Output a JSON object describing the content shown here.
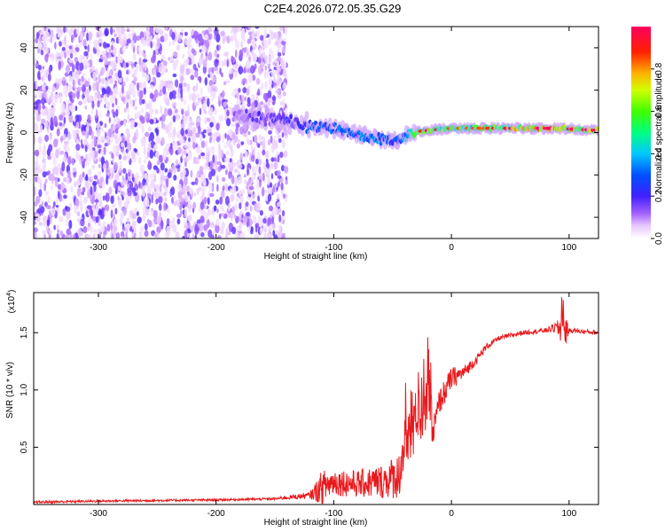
{
  "page_title": "C2E4.2026.072.05.35.G29",
  "colors": {
    "axis": "#000000",
    "snr_line": "#e8191c",
    "spectrogram_low": "#a070ff",
    "spectrogram_mid": "#00ff80",
    "spectrogram_high": "#ff0000"
  },
  "chart_data": [
    {
      "type": "heatmap",
      "name": "spectrogram",
      "title": "C2E4.2026.072.05.35.G29",
      "xlabel": "Height of straight line (km)",
      "ylabel": "Frequency (Hz)",
      "xlim": [
        -355,
        125
      ],
      "ylim": [
        -50,
        50
      ],
      "xticks": [
        -300,
        -200,
        -100,
        0,
        100
      ],
      "xtick_labels": [
        "-300",
        "-200",
        "-100",
        "0",
        "100"
      ],
      "yticks": [
        -40,
        -20,
        0,
        20,
        40
      ],
      "ytick_labels": [
        "-40",
        "-20",
        "0",
        "20",
        "40"
      ],
      "ridge_height_km": [
        -180,
        -150,
        -120,
        -100,
        -80,
        -60,
        -45,
        -35,
        -20,
        0,
        30,
        60,
        90,
        125
      ],
      "ridge_freq_hz": [
        8,
        6,
        3,
        2,
        -1,
        -3,
        -4,
        0,
        1,
        2,
        2,
        2,
        2,
        1
      ],
      "ridge_amplitude": [
        0.15,
        0.2,
        0.3,
        0.35,
        0.35,
        0.35,
        0.3,
        0.5,
        0.7,
        0.6,
        0.6,
        0.8,
        0.85,
        0.7
      ],
      "colorbar": {
        "label": "Normalized spectral amplitude",
        "range": [
          0,
          1
        ],
        "ticks": [
          0.0,
          0.2,
          0.4,
          0.6,
          0.8
        ],
        "tick_labels": [
          "0.0",
          "0.2",
          "0.4",
          "0.6",
          "0.8"
        ]
      }
    },
    {
      "type": "line",
      "name": "snr",
      "xlabel": "Height of straight line (km)",
      "ylabel": "SNR (10 * v/v)",
      "y_multiplier_label": "(x10",
      "y_multiplier_exp": "4",
      "y_multiplier_close": ")",
      "xlim": [
        -355,
        125
      ],
      "ylim": [
        0,
        1.85
      ],
      "xticks": [
        -300,
        -200,
        -100,
        0,
        100
      ],
      "xtick_labels": [
        "-300",
        "-200",
        "-100",
        "0",
        "100"
      ],
      "yticks": [
        0.5,
        1.0,
        1.5
      ],
      "ytick_labels": [
        "0.5",
        "1.0",
        "1.5"
      ],
      "series": [
        {
          "name": "SNR",
          "x": [
            -355,
            -300,
            -200,
            -150,
            -120,
            -110,
            -100,
            -80,
            -60,
            -45,
            -40,
            -30,
            -25,
            -20,
            -16,
            -10,
            0,
            10,
            20,
            30,
            40,
            60,
            80,
            90,
            94,
            100,
            125
          ],
          "y": [
            0.02,
            0.03,
            0.04,
            0.05,
            0.08,
            0.15,
            0.2,
            0.18,
            0.2,
            0.25,
            0.5,
            0.8,
            0.9,
            1.1,
            0.6,
            0.9,
            1.1,
            1.15,
            1.25,
            1.38,
            1.45,
            1.5,
            1.52,
            1.55,
            1.5,
            1.52,
            1.5
          ],
          "noise": [
            0.01,
            0.01,
            0.01,
            0.01,
            0.03,
            0.15,
            0.12,
            0.12,
            0.15,
            0.2,
            0.3,
            0.35,
            0.4,
            0.4,
            0.15,
            0.12,
            0.1,
            0.06,
            0.04,
            0.03,
            0.02,
            0.02,
            0.02,
            0.05,
            0.25,
            0.02,
            0.02
          ]
        }
      ]
    }
  ]
}
